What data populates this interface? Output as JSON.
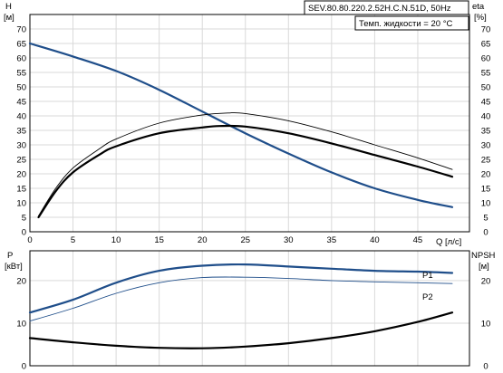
{
  "chart_data": [
    {
      "type": "line",
      "title": "SEV.80.80.220.2.52H.C.N.51D, 50Hz",
      "subtitle": "Темп. жидкости = 20 °C",
      "xlabel": "Q [л/с]",
      "ylabel_left": "H",
      "ylabel_left_unit": "[м]",
      "ylabel_right": "eta",
      "ylabel_right_unit": "[%]",
      "xlim": [
        0,
        51
      ],
      "ylim": [
        0,
        75
      ],
      "x_ticks": [
        0,
        5,
        10,
        15,
        20,
        25,
        30,
        35,
        40,
        45
      ],
      "y_ticks": [
        0,
        5,
        10,
        15,
        20,
        25,
        30,
        35,
        40,
        45,
        50,
        55,
        60,
        65,
        70
      ],
      "grid": true,
      "series": [
        {
          "color": "#1f4e8a",
          "points": [
            [
              0,
              65
            ],
            [
              5,
              60.5
            ],
            [
              10,
              55.5
            ],
            [
              15,
              49
            ],
            [
              20,
              41.5
            ],
            [
              25,
              34
            ],
            [
              30,
              27
            ],
            [
              35,
              20.5
            ],
            [
              40,
              15
            ],
            [
              45,
              11
            ],
            [
              49,
              8.5
            ]
          ]
        },
        {
          "color": "#000000",
          "points": [
            [
              1,
              5
            ],
            [
              3,
              14
            ],
            [
              5,
              20.5
            ],
            [
              8,
              26.5
            ],
            [
              10,
              29.5
            ],
            [
              15,
              34
            ],
            [
              20,
              36
            ],
            [
              22,
              36.5
            ],
            [
              25,
              36.3
            ],
            [
              30,
              34
            ],
            [
              35,
              30.5
            ],
            [
              40,
              26.5
            ],
            [
              45,
              22.5
            ],
            [
              49,
              19
            ]
          ]
        },
        {
          "color": "#000000",
          "points": [
            [
              1,
              5.5
            ],
            [
              3,
              15
            ],
            [
              5,
              22
            ],
            [
              8,
              28.5
            ],
            [
              10,
              32
            ],
            [
              15,
              37.5
            ],
            [
              20,
              40.3
            ],
            [
              23,
              41
            ],
            [
              25,
              40.8
            ],
            [
              30,
              38.3
            ],
            [
              35,
              34.5
            ],
            [
              40,
              30
            ],
            [
              45,
              25.5
            ],
            [
              49,
              21.5
            ]
          ]
        }
      ]
    },
    {
      "type": "line",
      "xlim": [
        0,
        51
      ],
      "ylabel_left": "P",
      "ylabel_left_unit": "[кВт]",
      "ylabel_right": "NPSH",
      "ylabel_right_unit": "[м]",
      "ylim_left": [
        0,
        27
      ],
      "ylim_right": [
        0,
        27
      ],
      "y_ticks_left": [
        0,
        10,
        20
      ],
      "y_ticks_right": [
        0,
        10,
        20
      ],
      "grid": true,
      "series": [
        {
          "name": "P1",
          "color": "#1f4e8a",
          "points": [
            [
              0,
              12.5
            ],
            [
              5,
              15.5
            ],
            [
              10,
              19.5
            ],
            [
              15,
              22.3
            ],
            [
              20,
              23.5
            ],
            [
              25,
              23.8
            ],
            [
              30,
              23.3
            ],
            [
              35,
              22.8
            ],
            [
              40,
              22.3
            ],
            [
              45,
              22.1
            ],
            [
              49,
              21.8
            ]
          ]
        },
        {
          "name": "P2",
          "color": "#1f4e8a",
          "points": [
            [
              0,
              10.5
            ],
            [
              5,
              13.5
            ],
            [
              10,
              17
            ],
            [
              15,
              19.5
            ],
            [
              20,
              20.7
            ],
            [
              25,
              20.8
            ],
            [
              30,
              20.5
            ],
            [
              35,
              20
            ],
            [
              40,
              19.7
            ],
            [
              45,
              19.5
            ],
            [
              49,
              19.3
            ]
          ]
        },
        {
          "color": "#000000",
          "points": [
            [
              0,
              6.5
            ],
            [
              5,
              5.5
            ],
            [
              10,
              4.7
            ],
            [
              15,
              4.2
            ],
            [
              20,
              4.1
            ],
            [
              25,
              4.5
            ],
            [
              30,
              5.3
            ],
            [
              35,
              6.5
            ],
            [
              40,
              8.1
            ],
            [
              45,
              10.3
            ],
            [
              49,
              12.5
            ]
          ]
        }
      ]
    }
  ]
}
